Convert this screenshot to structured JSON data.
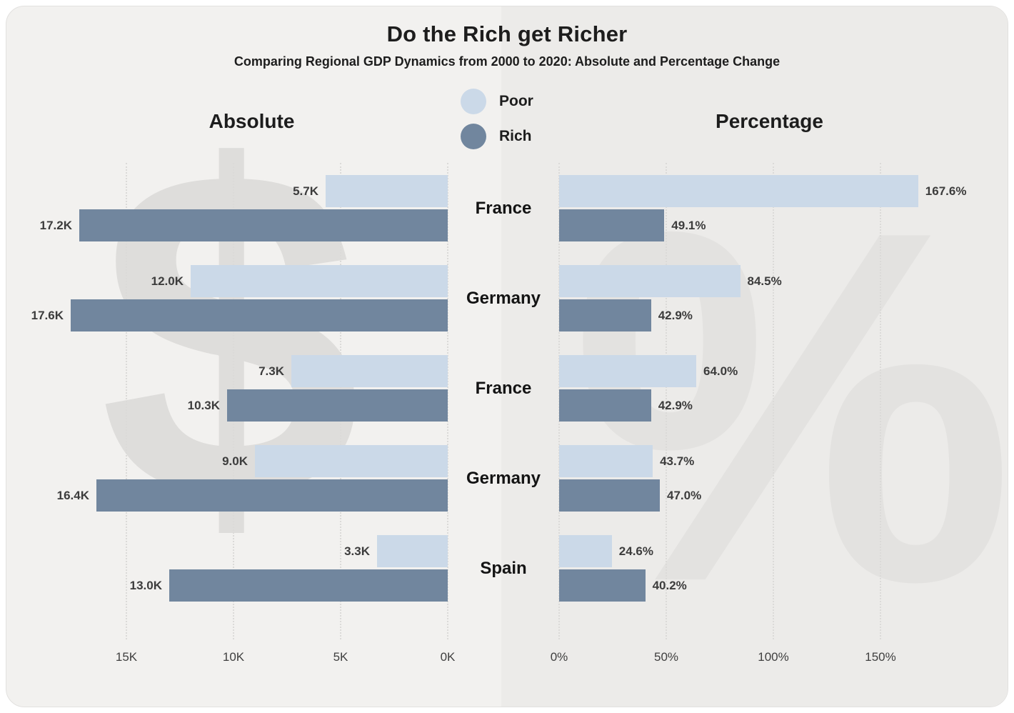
{
  "watermarks": {
    "dollar": "$",
    "percent": "%"
  },
  "chart_data": {
    "type": "bar",
    "orientation": "horizontal",
    "title": "Do the Rich get Richer",
    "subtitle": "Comparing Regional GDP Dynamics from 2000 to 2020: Absolute and Percentage Change",
    "categories": [
      "France",
      "Germany",
      "France",
      "Germany",
      "Spain"
    ],
    "legend": [
      {
        "name": "Poor",
        "color": "#cbd9e8"
      },
      {
        "name": "Rich",
        "color": "#71869e"
      }
    ],
    "grid": true,
    "panels": [
      {
        "title": "Absolute",
        "side": "left",
        "direction": "right-to-left",
        "axis_ticks": [
          "15K",
          "10K",
          "5K",
          "0K"
        ],
        "axis_values": [
          15,
          10,
          5,
          0
        ],
        "axis_range": [
          0,
          17.6
        ],
        "series": [
          {
            "name": "Poor",
            "values": [
              5.7,
              12.0,
              7.3,
              9.0,
              3.3
            ],
            "labels": [
              "5.7K",
              "12.0K",
              "7.3K",
              "9.0K",
              "3.3K"
            ]
          },
          {
            "name": "Rich",
            "values": [
              17.2,
              17.6,
              10.3,
              16.4,
              13.0
            ],
            "labels": [
              "17.2K",
              "17.6K",
              "10.3K",
              "16.4K",
              "13.0K"
            ]
          }
        ]
      },
      {
        "title": "Percentage",
        "side": "right",
        "direction": "left-to-right",
        "axis_ticks": [
          "0%",
          "50%",
          "100%",
          "150%"
        ],
        "axis_values": [
          0,
          50,
          100,
          150
        ],
        "axis_range": [
          0,
          167.6
        ],
        "series": [
          {
            "name": "Poor",
            "values": [
              167.6,
              84.5,
              64.0,
              43.7,
              24.6
            ],
            "labels": [
              "167.6%",
              "84.5%",
              "64.0%",
              "43.7%",
              "24.6%"
            ]
          },
          {
            "name": "Rich",
            "values": [
              49.1,
              42.9,
              42.9,
              47.0,
              40.2
            ],
            "labels": [
              "49.1%",
              "42.9%",
              "42.9%",
              "47.0%",
              "40.2%"
            ]
          }
        ]
      }
    ]
  }
}
